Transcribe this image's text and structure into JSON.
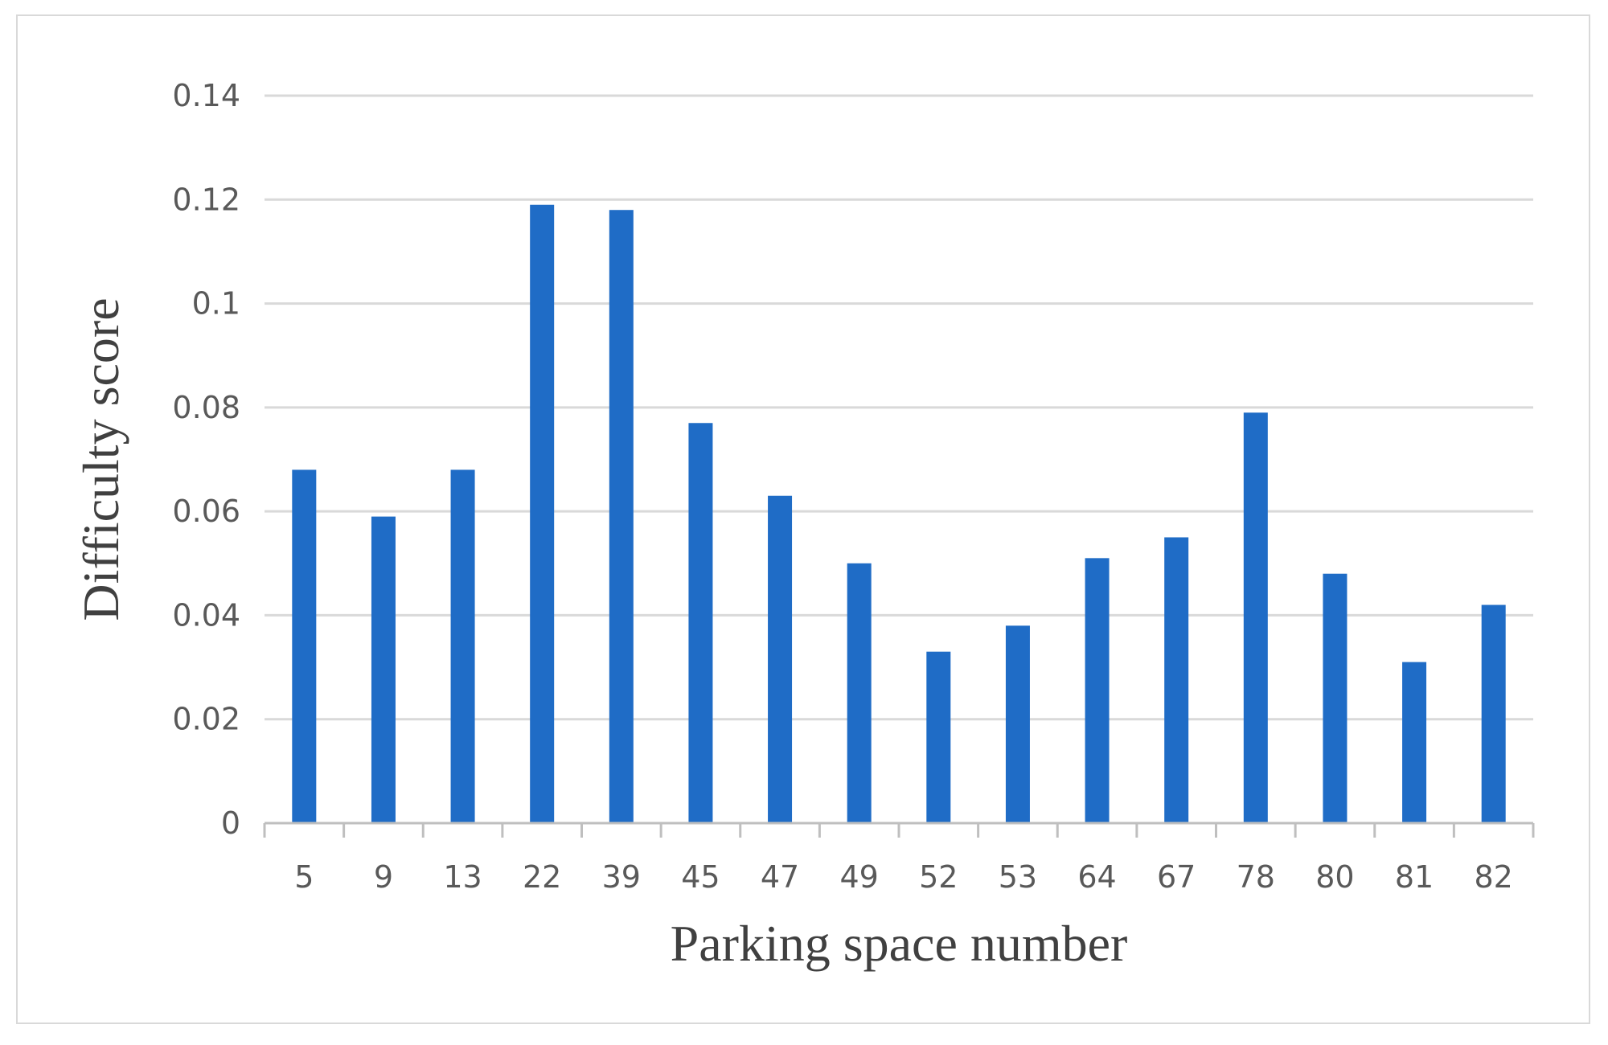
{
  "chart_data": {
    "type": "bar",
    "categories": [
      "5",
      "9",
      "13",
      "22",
      "39",
      "45",
      "47",
      "49",
      "52",
      "53",
      "64",
      "67",
      "78",
      "80",
      "81",
      "82"
    ],
    "values": [
      0.068,
      0.059,
      0.068,
      0.119,
      0.118,
      0.077,
      0.063,
      0.05,
      0.033,
      0.038,
      0.051,
      0.055,
      0.079,
      0.048,
      0.031,
      0.042
    ],
    "title": "",
    "xlabel": "Parking space number",
    "ylabel": "Difficulty score",
    "ylim": [
      0,
      0.14
    ],
    "yticks": [
      "0",
      "0.02",
      "0.04",
      "0.06",
      "0.08",
      "0.1",
      "0.12",
      "0.14"
    ],
    "grid": true,
    "legend": "none",
    "colors": {
      "bar": "#1f6cc6",
      "grid": "#d9d9d9",
      "axis": "#bfbfbf",
      "tick_text": "#595959",
      "axis_title": "#404040"
    }
  }
}
